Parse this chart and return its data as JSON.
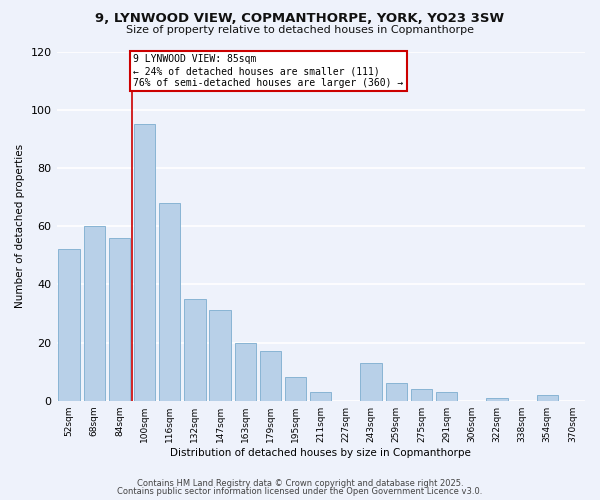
{
  "title": "9, LYNWOOD VIEW, COPMANTHORPE, YORK, YO23 3SW",
  "subtitle": "Size of property relative to detached houses in Copmanthorpe",
  "xlabel": "Distribution of detached houses by size in Copmanthorpe",
  "ylabel": "Number of detached properties",
  "categories": [
    "52sqm",
    "68sqm",
    "84sqm",
    "100sqm",
    "116sqm",
    "132sqm",
    "147sqm",
    "163sqm",
    "179sqm",
    "195sqm",
    "211sqm",
    "227sqm",
    "243sqm",
    "259sqm",
    "275sqm",
    "291sqm",
    "306sqm",
    "322sqm",
    "338sqm",
    "354sqm",
    "370sqm"
  ],
  "values": [
    52,
    60,
    56,
    95,
    68,
    35,
    31,
    20,
    17,
    8,
    3,
    0,
    13,
    6,
    4,
    3,
    0,
    1,
    0,
    2,
    0
  ],
  "bar_color": "#b8d0e8",
  "bar_edge_color": "#88b4d4",
  "vline_x_index": 2.5,
  "vline_color": "#cc0000",
  "annotation_text": "9 LYNWOOD VIEW: 85sqm\n← 24% of detached houses are smaller (111)\n76% of semi-detached houses are larger (360) →",
  "annotation_box_color": "#ffffff",
  "annotation_box_edge": "#cc0000",
  "ylim": [
    0,
    120
  ],
  "yticks": [
    0,
    20,
    40,
    60,
    80,
    100,
    120
  ],
  "footer1": "Contains HM Land Registry data © Crown copyright and database right 2025.",
  "footer2": "Contains public sector information licensed under the Open Government Licence v3.0.",
  "bg_color": "#eef2fb",
  "grid_color": "#ffffff"
}
